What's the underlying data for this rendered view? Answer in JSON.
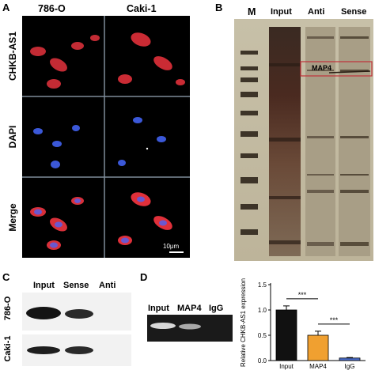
{
  "panels": {
    "A": {
      "letter": "A",
      "columns": [
        "786-O",
        "Caki-1"
      ],
      "rows": [
        "CHKB-AS1",
        "DAPI",
        "Merge"
      ],
      "scale_bar": "10μm"
    },
    "B": {
      "letter": "B",
      "lanes": [
        "M",
        "Input",
        "Anti",
        "Sense"
      ],
      "box_label": "MAP4"
    },
    "C": {
      "letter": "C",
      "lanes": [
        "Input",
        "Sense",
        "Anti"
      ],
      "rows": [
        "786-O",
        "Caki-1"
      ]
    },
    "D": {
      "letter": "D",
      "lanes": [
        "Input",
        "MAP4",
        "IgG"
      ]
    }
  },
  "chart_data": {
    "type": "bar",
    "categories": [
      "Input",
      "MAP4",
      "IgG"
    ],
    "values": [
      1.0,
      0.5,
      0.05
    ],
    "errors": [
      0.08,
      0.08,
      0.01
    ],
    "ylabel": "Relative CHKB-AS1 expression",
    "ylim": [
      0.0,
      1.5
    ],
    "yticks": [
      "0.0",
      "0.5",
      "1.0",
      "1.5"
    ],
    "significance": [
      "***",
      "***"
    ],
    "colors": [
      "#111111",
      "#f0a030",
      "#4a6cc8"
    ]
  }
}
